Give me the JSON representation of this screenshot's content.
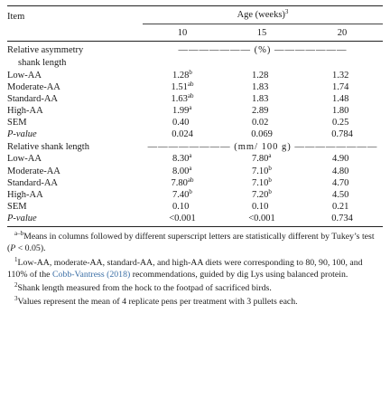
{
  "header": {
    "item_label": "Item",
    "age_label": "Age (weeks)",
    "age_sup": "3",
    "weeks": [
      "10",
      "15",
      "20"
    ]
  },
  "section1": {
    "title_line1": "Relative asymmetry",
    "title_unit": "(%)",
    "title_line2": "shank length",
    "rows": [
      {
        "label": "Low-AA",
        "italic": false,
        "v": [
          "1.28",
          "1.28",
          "1.32"
        ],
        "s": [
          "b",
          "",
          ""
        ]
      },
      {
        "label": "Moderate-AA",
        "italic": false,
        "v": [
          "1.51",
          "1.83",
          "1.74"
        ],
        "s": [
          "ab",
          "",
          ""
        ]
      },
      {
        "label": "Standard-AA",
        "italic": false,
        "v": [
          "1.63",
          "1.83",
          "1.48"
        ],
        "s": [
          "ab",
          "",
          ""
        ]
      },
      {
        "label": "High-AA",
        "italic": false,
        "v": [
          "1.99",
          "2.89",
          "1.80"
        ],
        "s": [
          "a",
          "",
          ""
        ]
      },
      {
        "label": "SEM",
        "italic": false,
        "v": [
          "0.40",
          "0.02",
          "0.25"
        ],
        "s": [
          "",
          "",
          ""
        ]
      },
      {
        "label": "P-value",
        "italic": true,
        "v": [
          "0.024",
          "0.069",
          "0.784"
        ],
        "s": [
          "",
          "",
          ""
        ]
      }
    ]
  },
  "section2": {
    "title": "Relative shank length",
    "title_unit": "(mm/ 100 g)",
    "rows": [
      {
        "label": "Low-AA",
        "italic": false,
        "v": [
          "8.30",
          "7.80",
          "4.90"
        ],
        "s": [
          "a",
          "a",
          ""
        ]
      },
      {
        "label": "Moderate-AA",
        "italic": false,
        "v": [
          "8.00",
          "7.10",
          "4.80"
        ],
        "s": [
          "a",
          "b",
          ""
        ]
      },
      {
        "label": "Standard-AA",
        "italic": false,
        "v": [
          "7.80",
          "7.10",
          "4.70"
        ],
        "s": [
          "ab",
          "b",
          ""
        ]
      },
      {
        "label": "High-AA",
        "italic": false,
        "v": [
          "7.40",
          "7.20",
          "4.50"
        ],
        "s": [
          "b",
          "b",
          ""
        ]
      },
      {
        "label": "SEM",
        "italic": false,
        "v": [
          "0.10",
          "0.10",
          "0.21"
        ],
        "s": [
          "",
          "",
          ""
        ]
      },
      {
        "label": "P-value",
        "italic": true,
        "v": [
          "<0.001",
          "<0.001",
          "0.734"
        ],
        "s": [
          "",
          "",
          ""
        ]
      }
    ]
  },
  "footnotes": {
    "n1_sup": "a–b",
    "n1_text_a": "Means in columns followed by different superscript letters are statistically different by Tukey’s test (",
    "n1_p": "P",
    "n1_text_b": " < 0.05).",
    "n2_sup": "1",
    "n2_text_a": "Low-AA, moderate-AA, standard-AA, and high-AA diets were corresponding to 80, 90, 100, and 110% of the ",
    "n2_link": "Cobb-Vantress (2018)",
    "n2_text_b": " recommendations, guided by dig Lys using balanced protein.",
    "n3_sup": "2",
    "n3_text": "Shank length measured from the hock to the footpad of sacrificed birds.",
    "n4_sup": "3",
    "n4_text": "Values represent the mean of 4 replicate pens per treatment with 3 pullets each."
  }
}
